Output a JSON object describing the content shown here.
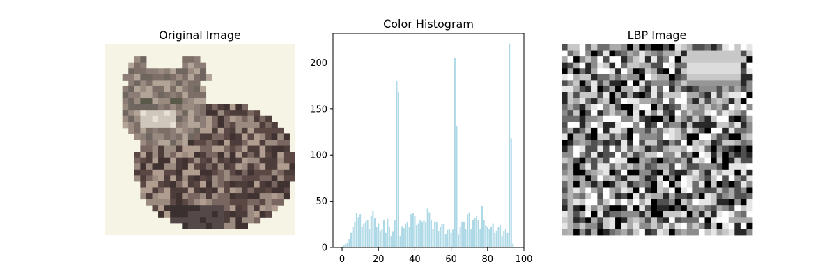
{
  "figure": {
    "panels": [
      {
        "title": "Original Image"
      },
      {
        "title": "Color Histogram"
      },
      {
        "title": "LBP Image"
      }
    ]
  },
  "chart_data": {
    "type": "bar",
    "title": "Color Histogram",
    "xlabel": "",
    "ylabel": "",
    "xlim": [
      -5,
      100
    ],
    "ylim": [
      0,
      232
    ],
    "xticks": [
      0,
      20,
      40,
      60,
      80,
      100
    ],
    "yticks": [
      0,
      50,
      100,
      150,
      200
    ],
    "grid": false,
    "bar_color": "#add8e6",
    "x": [
      0,
      1,
      2,
      3,
      4,
      5,
      6,
      7,
      8,
      9,
      10,
      11,
      12,
      13,
      14,
      15,
      16,
      17,
      18,
      19,
      20,
      21,
      22,
      23,
      24,
      25,
      26,
      27,
      28,
      29,
      30,
      31,
      32,
      33,
      34,
      35,
      36,
      37,
      38,
      39,
      40,
      41,
      42,
      43,
      44,
      45,
      46,
      47,
      48,
      49,
      50,
      51,
      52,
      53,
      54,
      55,
      56,
      57,
      58,
      59,
      60,
      61,
      62,
      63,
      64,
      65,
      66,
      67,
      68,
      69,
      70,
      71,
      72,
      73,
      74,
      75,
      76,
      77,
      78,
      79,
      80,
      81,
      82,
      83,
      84,
      85,
      86,
      87,
      88,
      89,
      90,
      91,
      92,
      93,
      94,
      95
    ],
    "values": [
      0,
      3,
      4,
      5,
      9,
      16,
      22,
      28,
      37,
      33,
      36,
      22,
      26,
      28,
      30,
      20,
      34,
      40,
      32,
      22,
      26,
      18,
      20,
      30,
      16,
      31,
      22,
      12,
      17,
      30,
      180,
      168,
      12,
      23,
      21,
      26,
      28,
      22,
      36,
      37,
      34,
      24,
      26,
      30,
      28,
      30,
      27,
      42,
      38,
      30,
      20,
      28,
      28,
      18,
      22,
      25,
      25,
      15,
      19,
      20,
      16,
      20,
      205,
      131,
      14,
      22,
      28,
      28,
      20,
      36,
      38,
      20,
      30,
      32,
      34,
      30,
      20,
      45,
      30,
      24,
      22,
      20,
      22,
      26,
      16,
      18,
      22,
      24,
      12,
      18,
      20,
      16,
      221,
      118,
      4,
      0
    ],
    "side_panels": {
      "original_image": {
        "content": "cat photo, pixelated"
      },
      "lbp_image": {
        "content": "grayscale LBP texture map"
      }
    }
  }
}
